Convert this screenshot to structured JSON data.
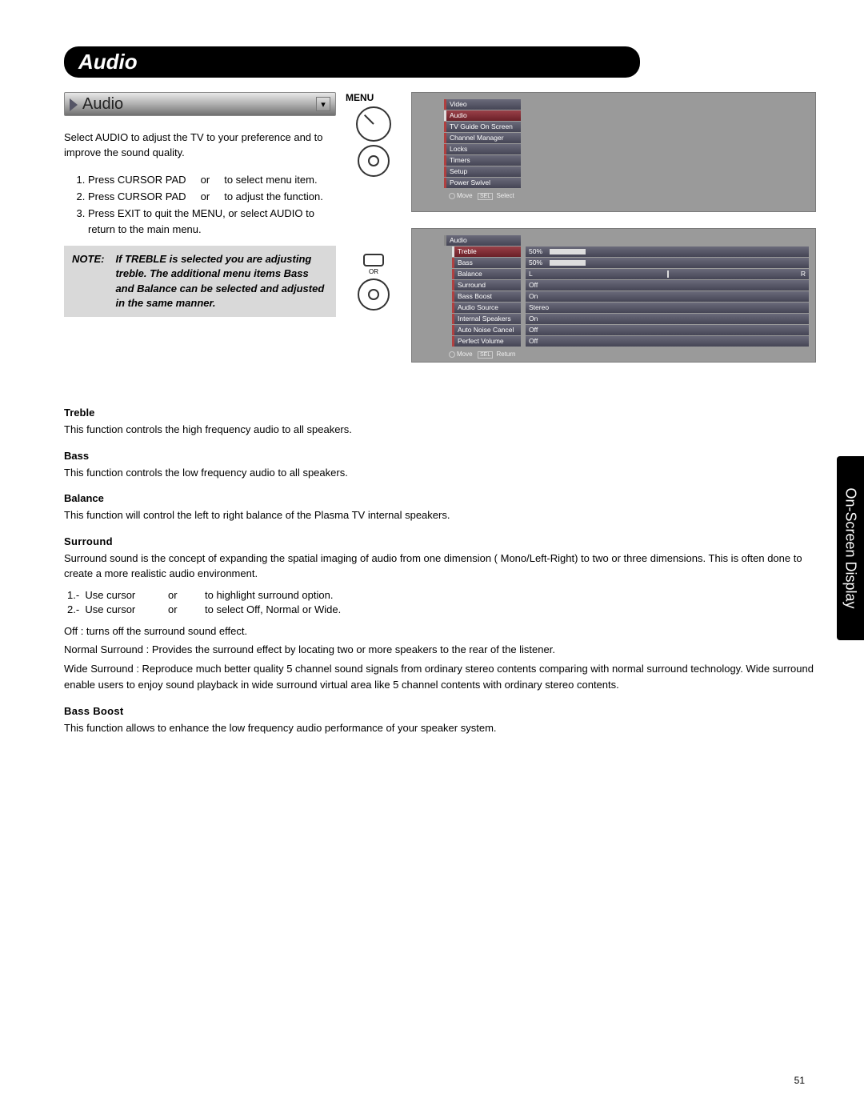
{
  "header": {
    "title": "Audio"
  },
  "ribbon": {
    "label": "Audio"
  },
  "intro": "Select AUDIO to adjust the TV to your preference and to improve the sound quality.",
  "steps": [
    "Press CURSOR PAD     or     to select menu item.",
    "Press CURSOR PAD     or     to adjust the function.",
    "Press EXIT to quit the MENU, or select AUDIO to return to the main menu."
  ],
  "note": {
    "label": "NOTE:",
    "text": "If TREBLE is selected you are adjusting treble.  The additional menu items Bass and Balance can be selected and adjusted in the same manner."
  },
  "mid": {
    "menu": "MENU",
    "or": "OR"
  },
  "osd1": {
    "items": [
      "Video",
      "Audio",
      "TV Guide On Screen",
      "Channel Manager",
      "Locks",
      "Timers",
      "Setup",
      "Power Swivel"
    ],
    "selected": 1,
    "footer_move": "Move",
    "footer_sel": "SEL",
    "footer_select": "Select"
  },
  "osd2": {
    "title": "Audio",
    "rows": [
      {
        "label": "Treble",
        "value": "50%",
        "bar": 50
      },
      {
        "label": "Bass",
        "value": "50%",
        "bar": 50
      },
      {
        "label": "Balance",
        "value": "L",
        "balance": true
      },
      {
        "label": "Surround",
        "value": "Off"
      },
      {
        "label": "Bass Boost",
        "value": "On"
      },
      {
        "label": "Audio Source",
        "value": "Stereo"
      },
      {
        "label": "Internal Speakers",
        "value": "On"
      },
      {
        "label": "Auto Noise Cancel",
        "value": "Off"
      },
      {
        "label": "Perfect Volume",
        "value": "Off"
      }
    ],
    "selected": 0,
    "footer_move": "Move",
    "footer_sel": "SEL",
    "footer_return": "Return"
  },
  "sections": {
    "treble": {
      "head": "Treble",
      "body": "This function controls the high frequency audio to all speakers."
    },
    "bass": {
      "head": "Bass",
      "body": "This function controls the low frequency audio to all speakers."
    },
    "balance": {
      "head": "Balance",
      "body": "This function will control the left to right balance of the Plasma TV internal speakers."
    },
    "surround": {
      "head": "Surround",
      "body": "Surround sound is the concept of expanding the spatial imaging of audio from one dimension ( Mono/Left-Right) to two or three dimensions. This is often done to create a more realistic audio environment.",
      "steps": [
        {
          "n": "1.-",
          "a": "Use cursor",
          "b": "or",
          "c": "to highlight surround option."
        },
        {
          "n": "2.-",
          "a": "Use cursor",
          "b": "or",
          "c": "to select Off, Normal or Wide."
        }
      ],
      "off": "Off : turns off the surround sound effect.",
      "normal": "Normal Surround :  Provides the surround effect by locating two or more speakers to the rear of the listener.",
      "wide": "Wide Surround : Reproduce much better quality 5 channel sound signals from ordinary stereo contents comparing with normal surround technology. Wide surround enable users to enjoy sound playback in wide surround virtual area like 5 channel contents with ordinary stereo contents."
    },
    "bassboost": {
      "head": "Bass Boost",
      "body": "This function allows to enhance the low frequency audio performance of your speaker system."
    }
  },
  "side_tab": "On-Screen Display",
  "page_number": "51"
}
